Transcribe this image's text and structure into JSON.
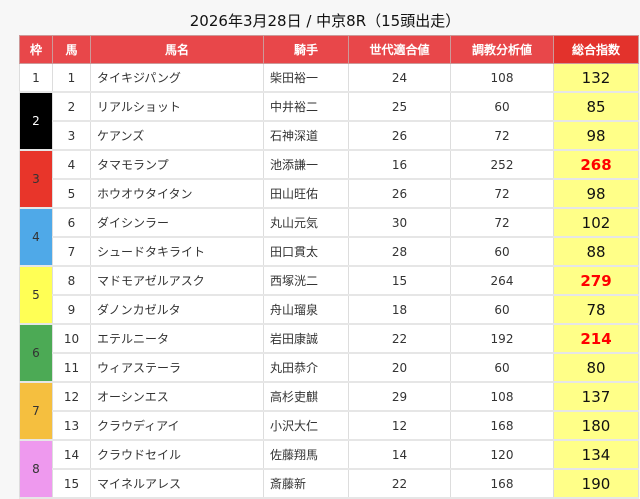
{
  "title": "2026年3月28日 / 中京8R（15頭出走）",
  "headers": {
    "frame": "枠",
    "num": "馬",
    "name": "馬名",
    "jockey": "騎手",
    "gen": "世代適合値",
    "train": "調教分析値",
    "total": "総合指数"
  },
  "colors": {
    "header": "#e8474a",
    "total_header": "#e3322c",
    "total_bg": "#ffff88",
    "highlight": "#ff0000"
  },
  "frames": [
    {
      "frame": "1",
      "bg": "#ffffff",
      "fg": "#333333"
    },
    {
      "frame": "2",
      "bg": "#000000",
      "fg": "#ffffff"
    },
    {
      "frame": "3",
      "bg": "#e8352a",
      "fg": "#333333"
    },
    {
      "frame": "4",
      "bg": "#4fa9e8",
      "fg": "#333333"
    },
    {
      "frame": "5",
      "bg": "#ffff55",
      "fg": "#333333"
    },
    {
      "frame": "6",
      "bg": "#4caa55",
      "fg": "#333333"
    },
    {
      "frame": "7",
      "bg": "#f5bf3f",
      "fg": "#333333"
    },
    {
      "frame": "8",
      "bg": "#ee99ee",
      "fg": "#333333"
    }
  ],
  "rows": [
    {
      "frame": "1",
      "num": "1",
      "name": "タイキジパング",
      "jockey": "柴田裕一",
      "gen": "24",
      "train": "108",
      "total": "132",
      "hi": false
    },
    {
      "frame": "2",
      "num": "2",
      "name": "リアルショット",
      "jockey": "中井裕二",
      "gen": "25",
      "train": "60",
      "total": "85",
      "hi": false
    },
    {
      "frame": "2",
      "num": "3",
      "name": "ケアンズ",
      "jockey": "石神深道",
      "gen": "26",
      "train": "72",
      "total": "98",
      "hi": false
    },
    {
      "frame": "3",
      "num": "4",
      "name": "タマモランプ",
      "jockey": "池添謙一",
      "gen": "16",
      "train": "252",
      "total": "268",
      "hi": true
    },
    {
      "frame": "3",
      "num": "5",
      "name": "ホウオウタイタン",
      "jockey": "田山旺佑",
      "gen": "26",
      "train": "72",
      "total": "98",
      "hi": false
    },
    {
      "frame": "4",
      "num": "6",
      "name": "ダイシンラー",
      "jockey": "丸山元気",
      "gen": "30",
      "train": "72",
      "total": "102",
      "hi": false
    },
    {
      "frame": "4",
      "num": "7",
      "name": "シュードタキライト",
      "jockey": "田口貫太",
      "gen": "28",
      "train": "60",
      "total": "88",
      "hi": false
    },
    {
      "frame": "5",
      "num": "8",
      "name": "マドモアゼルアスク",
      "jockey": "西塚洸二",
      "gen": "15",
      "train": "264",
      "total": "279",
      "hi": true
    },
    {
      "frame": "5",
      "num": "9",
      "name": "ダノンカゼルタ",
      "jockey": "舟山瑠泉",
      "gen": "18",
      "train": "60",
      "total": "78",
      "hi": false
    },
    {
      "frame": "6",
      "num": "10",
      "name": "エテルニータ",
      "jockey": "岩田康誠",
      "gen": "22",
      "train": "192",
      "total": "214",
      "hi": true
    },
    {
      "frame": "6",
      "num": "11",
      "name": "ウィアステーラ",
      "jockey": "丸田恭介",
      "gen": "20",
      "train": "60",
      "total": "80",
      "hi": false
    },
    {
      "frame": "7",
      "num": "12",
      "name": "オーシンエス",
      "jockey": "高杉吏麒",
      "gen": "29",
      "train": "108",
      "total": "137",
      "hi": false
    },
    {
      "frame": "7",
      "num": "13",
      "name": "クラウディアイ",
      "jockey": "小沢大仁",
      "gen": "12",
      "train": "168",
      "total": "180",
      "hi": false
    },
    {
      "frame": "8",
      "num": "14",
      "name": "クラウドセイル",
      "jockey": "佐藤翔馬",
      "gen": "14",
      "train": "120",
      "total": "134",
      "hi": false
    },
    {
      "frame": "8",
      "num": "15",
      "name": "マイネルアレス",
      "jockey": "斎藤新",
      "gen": "22",
      "train": "168",
      "total": "190",
      "hi": false
    }
  ]
}
